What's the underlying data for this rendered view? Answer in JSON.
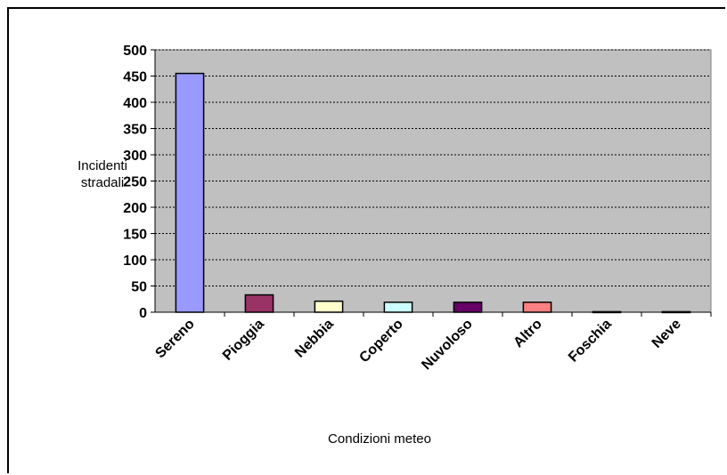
{
  "chart_data": {
    "type": "bar",
    "title": "",
    "xlabel": "Condizioni meteo",
    "ylabel_lines": [
      "Incidenti",
      "stradali"
    ],
    "categories": [
      "Sereno",
      "Pioggia",
      "Nebbia",
      "Coperto",
      "Nuvoloso",
      "Altro",
      "Foschia",
      "Neve"
    ],
    "values": [
      455,
      33,
      21,
      19,
      19,
      19,
      1,
      1
    ],
    "colors": [
      "#9999ff",
      "#993366",
      "#ffffcc",
      "#ccffff",
      "#660066",
      "#ff8080",
      "#0066cc",
      "#ccccff"
    ],
    "ylim": [
      0,
      500
    ],
    "yticks": [
      0,
      50,
      100,
      150,
      200,
      250,
      300,
      350,
      400,
      450,
      500
    ],
    "grid": true,
    "plot_background": "#c0c0c0",
    "legend": "none"
  }
}
